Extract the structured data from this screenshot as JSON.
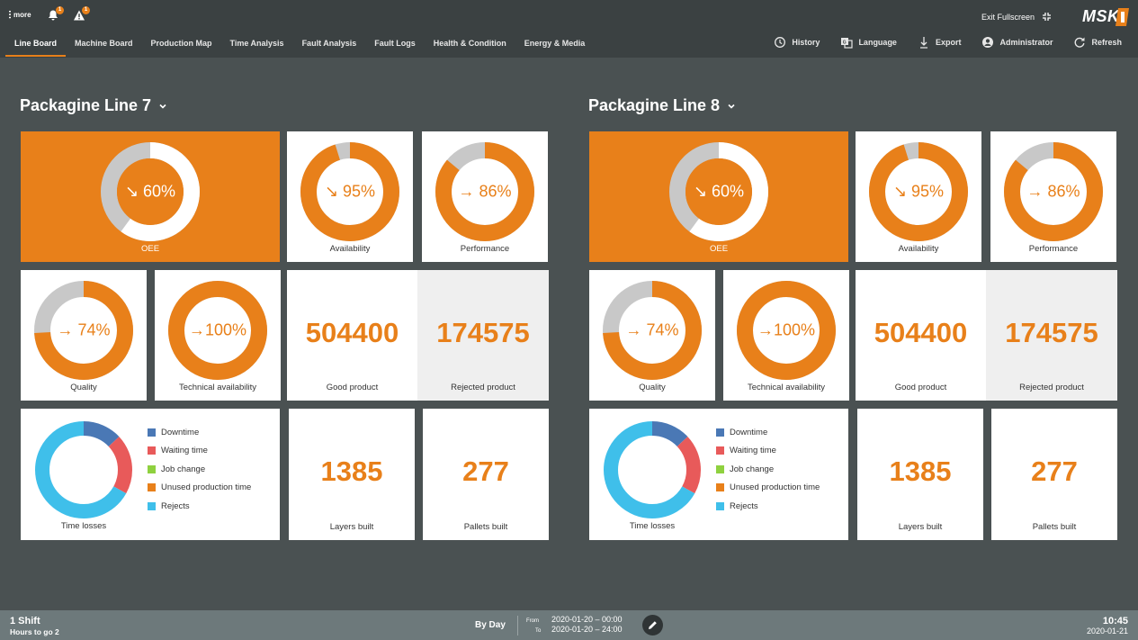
{
  "header": {
    "more_label": "more",
    "notifications_count": "1",
    "warnings_count": "1",
    "exit_fullscreen_label": "Exit Fullscreen",
    "logo_text": "MSK",
    "tabs": [
      {
        "label": "Line Board",
        "active": true
      },
      {
        "label": "Machine Board"
      },
      {
        "label": "Production Map"
      },
      {
        "label": "Time Analysis"
      },
      {
        "label": "Fault Analysis"
      },
      {
        "label": "Fault Logs"
      },
      {
        "label": "Health & Condition"
      },
      {
        "label": "Energy & Media"
      }
    ],
    "actions": [
      {
        "label": "History",
        "icon": "history-icon"
      },
      {
        "label": "Language",
        "icon": "language-icon"
      },
      {
        "label": "Export",
        "icon": "export-icon"
      },
      {
        "label": "Administrator",
        "icon": "user-icon"
      },
      {
        "label": "Refresh",
        "icon": "refresh-icon"
      }
    ]
  },
  "lines": [
    {
      "title": "Packagine Line 7",
      "oee": {
        "label": "OEE",
        "value": "↘ 60%",
        "percent": 60
      },
      "availability": {
        "label": "Availability",
        "value": "↘ 95%",
        "percent": 95
      },
      "performance": {
        "label": "Performance",
        "value": "→ 86%",
        "percent": 86
      },
      "quality": {
        "label": "Quality",
        "value": "→ 74%",
        "percent": 74
      },
      "technical_availability": {
        "label": "Technical availability",
        "value": "→100%",
        "percent": 100
      },
      "good_product": {
        "label": "Good product",
        "value": "504400"
      },
      "rejected_product": {
        "label": "Rejected product",
        "value": "174575"
      },
      "time_losses": {
        "label": "Time losses",
        "legend": [
          {
            "name": "Downtime",
            "color": "#4a78b5",
            "share": 0.13
          },
          {
            "name": "Waiting time",
            "color": "#e85a5a",
            "share": 0.2
          },
          {
            "name": "Job change",
            "color": "#8fd13f",
            "share": 0.0
          },
          {
            "name": "Unused production time",
            "color": "#e8801a",
            "share": 0.0
          },
          {
            "name": "Rejects",
            "color": "#3fbfea",
            "share": 0.67
          }
        ]
      },
      "layers_built": {
        "label": "Layers built",
        "value": "1385"
      },
      "pallets_built": {
        "label": "Pallets built",
        "value": "277"
      }
    },
    {
      "title": "Packagine Line 8",
      "oee": {
        "label": "OEE",
        "value": "↘ 60%",
        "percent": 60
      },
      "availability": {
        "label": "Availability",
        "value": "↘ 95%",
        "percent": 95
      },
      "performance": {
        "label": "Performance",
        "value": "→ 86%",
        "percent": 86
      },
      "quality": {
        "label": "Quality",
        "value": "→ 74%",
        "percent": 74
      },
      "technical_availability": {
        "label": "Technical availability",
        "value": "→100%",
        "percent": 100
      },
      "good_product": {
        "label": "Good product",
        "value": "504400"
      },
      "rejected_product": {
        "label": "Rejected product",
        "value": "174575"
      },
      "time_losses": {
        "label": "Time losses",
        "legend": [
          {
            "name": "Downtime",
            "color": "#4a78b5",
            "share": 0.13
          },
          {
            "name": "Waiting time",
            "color": "#e85a5a",
            "share": 0.2
          },
          {
            "name": "Job change",
            "color": "#8fd13f",
            "share": 0.0
          },
          {
            "name": "Unused production time",
            "color": "#e8801a",
            "share": 0.0
          },
          {
            "name": "Rejects",
            "color": "#3fbfea",
            "share": 0.67
          }
        ]
      },
      "layers_built": {
        "label": "Layers built",
        "value": "1385"
      },
      "pallets_built": {
        "label": "Pallets built",
        "value": "277"
      }
    }
  ],
  "footer": {
    "shift_title": "1 Shift",
    "shift_sub": "Hours to go 2",
    "period": "By Day",
    "from_label": "From",
    "to_label": "To",
    "from_value": "2020-01-20 – 00:00",
    "to_value": "2020-01-20 – 24:00",
    "time": "10:45",
    "date": "2020-01-21"
  },
  "colors": {
    "accent": "#e8801a",
    "gauge_track": "#c8c8c8",
    "background": "#4a5152",
    "topbar": "#3b4142"
  }
}
